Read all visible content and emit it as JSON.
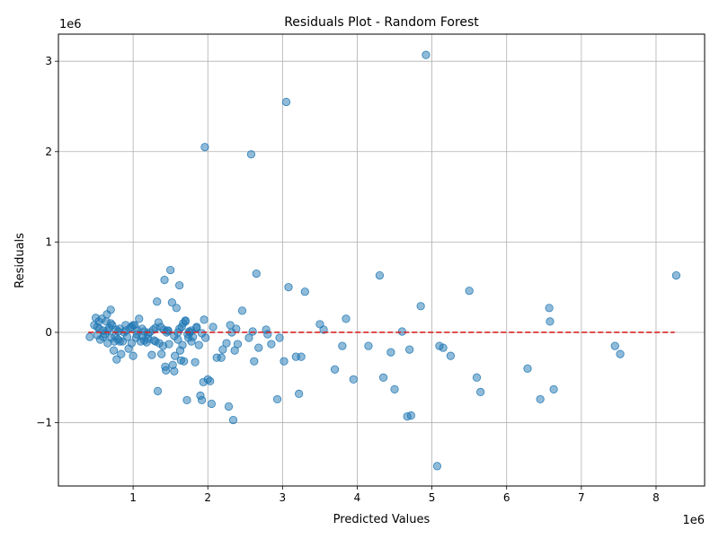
{
  "chart_data": {
    "type": "scatter",
    "title": "Residuals Plot - Random Forest",
    "xlabel": "Predicted Values",
    "ylabel": "Residuals",
    "x_offset_label": "1e6",
    "y_offset_label": "1e6",
    "xlim": [
      -0.0,
      8.65
    ],
    "ylim": [
      -1.7,
      3.3
    ],
    "x_ticks": [
      1,
      2,
      3,
      4,
      5,
      6,
      7,
      8
    ],
    "x_tick_labels": [
      "1",
      "2",
      "3",
      "4",
      "5",
      "6",
      "7",
      "8"
    ],
    "y_ticks": [
      -1,
      0,
      1,
      2,
      3
    ],
    "y_tick_labels": [
      "−1",
      "0",
      "1",
      "2",
      "3"
    ],
    "grid": true,
    "point_color": "#1f77b4",
    "point_alpha": 0.5,
    "reference_line": {
      "y": 0,
      "x_range": [
        0.4,
        8.25
      ],
      "color": "#d62728",
      "style": "dashed"
    },
    "points": [
      [
        0.42,
        -0.05
      ],
      [
        0.48,
        0.08
      ],
      [
        0.5,
        0.16
      ],
      [
        0.52,
        -0.03
      ],
      [
        0.54,
        0.12
      ],
      [
        0.55,
        0.04
      ],
      [
        0.56,
        -0.08
      ],
      [
        0.58,
        0.15
      ],
      [
        0.6,
        0.02
      ],
      [
        0.62,
        -0.02
      ],
      [
        0.64,
        0.12
      ],
      [
        0.65,
        0.2
      ],
      [
        0.66,
        -0.12
      ],
      [
        0.68,
        0.05
      ],
      [
        0.7,
        0.25
      ],
      [
        0.71,
        -0.06
      ],
      [
        0.72,
        0.08
      ],
      [
        0.74,
        -0.2
      ],
      [
        0.75,
        -0.1
      ],
      [
        0.77,
        0.03
      ],
      [
        0.78,
        -0.3
      ],
      [
        0.8,
        -0.08
      ],
      [
        0.82,
        0.04
      ],
      [
        0.84,
        -0.24
      ],
      [
        0.86,
        -0.1
      ],
      [
        0.88,
        0.0
      ],
      [
        0.9,
        0.08
      ],
      [
        0.92,
        -0.05
      ],
      [
        0.94,
        -0.18
      ],
      [
        0.96,
        0.05
      ],
      [
        0.98,
        -0.12
      ],
      [
        1.0,
        -0.26
      ],
      [
        1.02,
        0.08
      ],
      [
        1.04,
        -0.06
      ],
      [
        1.06,
        0.02
      ],
      [
        1.08,
        0.15
      ],
      [
        1.1,
        -0.1
      ],
      [
        1.12,
        -0.04
      ],
      [
        1.15,
        0.01
      ],
      [
        1.18,
        -0.11
      ],
      [
        1.2,
        -0.02
      ],
      [
        1.22,
        0.0
      ],
      [
        1.25,
        -0.25
      ],
      [
        1.28,
        -0.09
      ],
      [
        1.3,
        0.05
      ],
      [
        1.32,
        0.34
      ],
      [
        1.33,
        -0.65
      ],
      [
        1.35,
        -0.12
      ],
      [
        1.37,
        0.06
      ],
      [
        1.38,
        -0.24
      ],
      [
        1.4,
        -0.15
      ],
      [
        1.42,
        0.58
      ],
      [
        1.43,
        -0.38
      ],
      [
        1.44,
        -0.42
      ],
      [
        1.46,
        0.02
      ],
      [
        1.48,
        -0.13
      ],
      [
        1.5,
        0.69
      ],
      [
        1.52,
        0.33
      ],
      [
        1.53,
        -0.36
      ],
      [
        1.55,
        -0.43
      ],
      [
        1.56,
        -0.26
      ],
      [
        1.58,
        0.27
      ],
      [
        1.6,
        0.0
      ],
      [
        1.62,
        0.52
      ],
      [
        1.63,
        -0.2
      ],
      [
        1.64,
        -0.31
      ],
      [
        1.65,
        0.06
      ],
      [
        1.66,
        -0.14
      ],
      [
        1.68,
        -0.32
      ],
      [
        1.7,
        0.12
      ],
      [
        1.72,
        -0.75
      ],
      [
        1.74,
        -0.06
      ],
      [
        1.76,
        0.0
      ],
      [
        1.78,
        -0.1
      ],
      [
        1.8,
        -0.05
      ],
      [
        1.83,
        -0.33
      ],
      [
        1.85,
        0.05
      ],
      [
        1.88,
        -0.14
      ],
      [
        1.9,
        -0.7
      ],
      [
        1.92,
        -0.75
      ],
      [
        1.94,
        -0.55
      ],
      [
        1.95,
        0.14
      ],
      [
        1.96,
        2.05
      ],
      [
        1.97,
        -0.06
      ],
      [
        2.0,
        -0.52
      ],
      [
        2.03,
        -0.54
      ],
      [
        2.05,
        -0.79
      ],
      [
        2.07,
        0.06
      ],
      [
        2.12,
        -0.28
      ],
      [
        2.18,
        -0.28
      ],
      [
        2.2,
        -0.19
      ],
      [
        2.25,
        -0.12
      ],
      [
        2.28,
        -0.82
      ],
      [
        2.3,
        0.08
      ],
      [
        2.32,
        0.0
      ],
      [
        2.34,
        -0.97
      ],
      [
        2.36,
        -0.2
      ],
      [
        2.38,
        0.04
      ],
      [
        2.4,
        -0.13
      ],
      [
        2.46,
        0.24
      ],
      [
        2.55,
        -0.06
      ],
      [
        2.58,
        1.97
      ],
      [
        2.6,
        0.01
      ],
      [
        2.62,
        -0.32
      ],
      [
        2.65,
        0.65
      ],
      [
        2.68,
        -0.17
      ],
      [
        2.78,
        0.03
      ],
      [
        2.8,
        -0.02
      ],
      [
        2.85,
        -0.13
      ],
      [
        2.93,
        -0.74
      ],
      [
        2.96,
        -0.06
      ],
      [
        3.02,
        -0.32
      ],
      [
        3.05,
        2.55
      ],
      [
        3.08,
        0.5
      ],
      [
        3.18,
        -0.27
      ],
      [
        3.22,
        -0.68
      ],
      [
        3.25,
        -0.27
      ],
      [
        3.3,
        0.45
      ],
      [
        3.5,
        0.09
      ],
      [
        3.55,
        0.03
      ],
      [
        3.7,
        -0.41
      ],
      [
        3.8,
        -0.15
      ],
      [
        3.85,
        0.15
      ],
      [
        3.95,
        -0.52
      ],
      [
        4.15,
        -0.15
      ],
      [
        4.3,
        0.63
      ],
      [
        4.35,
        -0.5
      ],
      [
        4.45,
        -0.22
      ],
      [
        4.5,
        -0.63
      ],
      [
        4.6,
        0.01
      ],
      [
        4.67,
        -0.93
      ],
      [
        4.7,
        -0.19
      ],
      [
        4.72,
        -0.92
      ],
      [
        4.85,
        0.29
      ],
      [
        4.92,
        3.07
      ],
      [
        5.07,
        -1.48
      ],
      [
        5.1,
        -0.15
      ],
      [
        5.15,
        -0.17
      ],
      [
        5.25,
        -0.26
      ],
      [
        5.5,
        0.46
      ],
      [
        5.6,
        -0.5
      ],
      [
        5.65,
        -0.66
      ],
      [
        6.28,
        -0.4
      ],
      [
        6.45,
        -0.74
      ],
      [
        6.57,
        0.27
      ],
      [
        6.58,
        0.12
      ],
      [
        6.63,
        -0.63
      ],
      [
        7.45,
        -0.15
      ],
      [
        7.52,
        -0.24
      ],
      [
        8.27,
        0.63
      ],
      [
        0.52,
        0.06
      ],
      [
        0.6,
        -0.05
      ],
      [
        0.7,
        0.1
      ],
      [
        0.76,
        -0.04
      ],
      [
        0.82,
        -0.1
      ],
      [
        0.9,
        0.02
      ],
      [
        0.98,
        0.06
      ],
      [
        1.05,
        -0.02
      ],
      [
        1.12,
        0.04
      ],
      [
        1.2,
        -0.07
      ],
      [
        1.27,
        0.03
      ],
      [
        1.34,
        0.11
      ],
      [
        1.41,
        0.03
      ],
      [
        1.47,
        0.02
      ],
      [
        1.55,
        -0.04
      ],
      [
        1.6,
        -0.08
      ],
      [
        1.67,
        0.1
      ],
      [
        1.7,
        0.13
      ],
      [
        1.73,
        -0.02
      ],
      [
        1.78,
        0.02
      ],
      [
        1.85,
        0.06
      ],
      [
        1.92,
        -0.01
      ],
      [
        0.66,
        0.02
      ],
      [
        0.8,
        0.01
      ],
      [
        1.0,
        0.08
      ],
      [
        1.15,
        -0.09
      ],
      [
        1.3,
        -0.1
      ],
      [
        1.45,
        0.0
      ],
      [
        1.62,
        0.04
      ],
      [
        1.75,
        0.01
      ]
    ]
  }
}
